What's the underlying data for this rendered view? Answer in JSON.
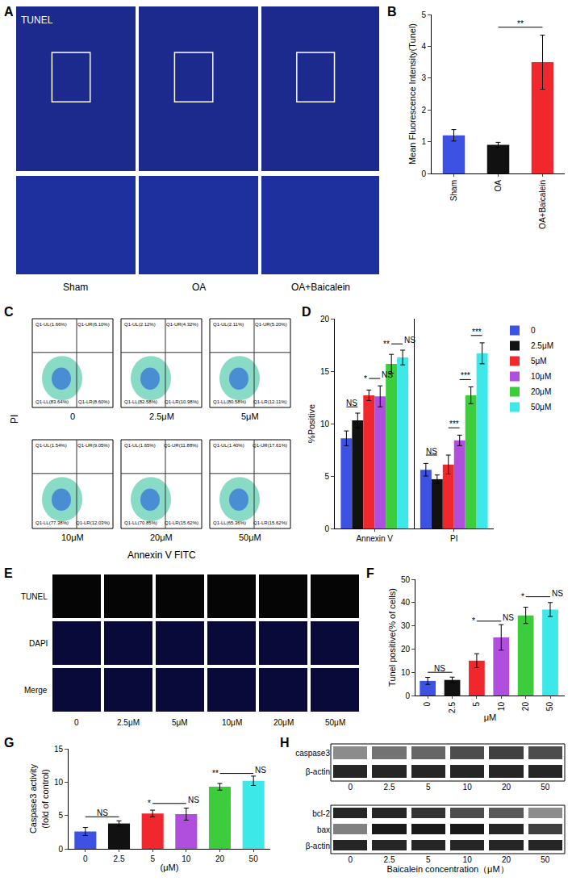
{
  "panels": {
    "A": {
      "panel": "A",
      "stain": "TUNEL",
      "groups": [
        "Sham",
        "OA",
        "OA+Baicalein"
      ]
    },
    "C": {
      "panel": "C",
      "x_label": "Annexin V FITC",
      "y_label": "PI",
      "tick_labels": false,
      "samples": [
        {
          "name": "0",
          "quadrants": [
            "Q1-UL(1.66%)",
            "Q1-UR(6.10%)",
            "Q1-LL(83.64%)",
            "Q1-LR(8.60%)"
          ]
        },
        {
          "name": "2.5μM",
          "quadrants": [
            "Q1-UL(2.12%)",
            "Q1-UR(4.32%)",
            "Q1-LL(82.58%)",
            "Q1-LR(10.98%)"
          ]
        },
        {
          "name": "5μM",
          "quadrants": [
            "Q1-UL(2.11%)",
            "Q1-UR(5.20%)",
            "Q1-LL(80.58%)",
            "Q1-LR(12.11%)"
          ]
        },
        {
          "name": "10μM",
          "quadrants": [
            "Q1-UL(1.54%)",
            "Q1-UR(9.05%)",
            "Q1-LL(77.38%)",
            "Q1-LR(12.03%)"
          ]
        },
        {
          "name": "20μM",
          "quadrants": [
            "Q1-UL(1.65%)",
            "Q1-UR(11.88%)",
            "Q1-LL(70.85%)",
            "Q1-LR(15.62%)"
          ]
        },
        {
          "name": "50μM",
          "quadrants": [
            "Q1-UL(1.40%)",
            "Q1-UR(17.61%)",
            "Q1-LL(65.36%)",
            "Q1-LR(15.62%)"
          ]
        }
      ]
    },
    "E": {
      "panel": "E",
      "rows": [
        "TUNEL",
        "DAPI",
        "Merge"
      ],
      "columns": [
        "0",
        "2.5μM",
        "5μM",
        "10μM",
        "20μM",
        "50μM"
      ]
    },
    "H": {
      "panel": "H",
      "x_label": "Baicalein concentration（μM）",
      "lanes": [
        "0",
        "2.5",
        "5",
        "10",
        "20",
        "50"
      ],
      "blots": [
        {
          "rows": [
            {
              "name": "caspase3",
              "band_intensity": [
                0.45,
                0.55,
                0.6,
                0.7,
                0.75,
                0.7
              ]
            },
            {
              "name": "β-actin",
              "band_intensity": [
                0.85,
                0.85,
                0.85,
                0.85,
                0.85,
                0.85
              ]
            }
          ]
        },
        {
          "rows": [
            {
              "name": "bcl-2",
              "band_intensity": [
                0.85,
                0.85,
                0.8,
                0.7,
                0.65,
                0.45
              ]
            },
            {
              "name": "bax",
              "band_intensity": [
                0.5,
                0.9,
                0.9,
                0.9,
                0.85,
                0.75
              ]
            },
            {
              "name": "β-actin",
              "band_intensity": [
                0.85,
                0.85,
                0.85,
                0.85,
                0.85,
                0.85
              ]
            }
          ]
        }
      ]
    }
  },
  "chart_data": [
    {
      "panel": "B",
      "type": "bar",
      "categories": [
        "Sham",
        "OA",
        "OA+Baicalein"
      ],
      "values": [
        1.2,
        0.9,
        3.5
      ],
      "errors": [
        0.18,
        0.08,
        0.85
      ],
      "colors": [
        "#3d52e3",
        "#111111",
        "#f0282d"
      ],
      "ylabel": "Mean Fluorescence Intensity(Tunel)",
      "ylim": [
        0,
        5
      ],
      "yticks": [
        0,
        1,
        2,
        3,
        4,
        5
      ],
      "grid": false,
      "significance": [
        {
          "texts": [
            "**"
          ],
          "from": 1,
          "to": 2,
          "y": 4.6
        }
      ]
    },
    {
      "panel": "D",
      "type": "bar",
      "categories": [
        "Annexin V",
        "PI"
      ],
      "series": [
        {
          "name": "0",
          "color": "#3d52e3",
          "values": [
            8.6,
            5.6
          ],
          "errors": [
            0.7,
            0.6
          ]
        },
        {
          "name": "2.5μM",
          "color": "#111111",
          "values": [
            10.3,
            4.7
          ],
          "errors": [
            0.7,
            0.4
          ]
        },
        {
          "name": "5μM",
          "color": "#f0282d",
          "values": [
            12.7,
            6.1
          ],
          "errors": [
            0.5,
            0.9
          ]
        },
        {
          "name": "10μM",
          "color": "#b04fdd",
          "values": [
            12.6,
            8.4
          ],
          "errors": [
            1.0,
            0.5
          ]
        },
        {
          "name": "20μM",
          "color": "#3ccc3c",
          "values": [
            15.7,
            12.7
          ],
          "errors": [
            0.9,
            0.8
          ]
        },
        {
          "name": "50μM",
          "color": "#3de8e8",
          "values": [
            16.3,
            16.7
          ],
          "errors": [
            0.7,
            1.0
          ]
        }
      ],
      "ylabel": "%Positive",
      "ylim": [
        0,
        20
      ],
      "yticks": [
        0,
        5,
        10,
        15,
        20
      ],
      "grid": false,
      "legend": "right",
      "significance": [
        {
          "category": 0,
          "texts": [
            "NS"
          ],
          "from": 0,
          "to": 1,
          "y": 11.6
        },
        {
          "category": 0,
          "texts": [
            "*",
            "NS"
          ],
          "from": 2,
          "to": 3,
          "y": 14.3
        },
        {
          "category": 0,
          "texts": [
            "**",
            "NS"
          ],
          "from": 4,
          "to": 5,
          "y": 17.6
        },
        {
          "category": 1,
          "texts": [
            "NS"
          ],
          "from": 0,
          "to": 1,
          "y": 7.0
        },
        {
          "category": 1,
          "texts": [
            "***"
          ],
          "from": 2,
          "to": 3,
          "y": 9.6
        },
        {
          "category": 1,
          "texts": [
            "***"
          ],
          "from": 3,
          "to": 4,
          "y": 14.2
        },
        {
          "category": 1,
          "texts": [
            "***"
          ],
          "from": 4,
          "to": 5,
          "y": 18.4
        }
      ]
    },
    {
      "panel": "F",
      "type": "bar",
      "categories": [
        "0",
        "2.5",
        "5",
        "10",
        "20",
        "50"
      ],
      "values": [
        6.3,
        6.7,
        15,
        25,
        34.5,
        37
      ],
      "errors": [
        1.5,
        1.2,
        3,
        5.5,
        3.5,
        3
      ],
      "colors": [
        "#3d52e3",
        "#111111",
        "#f0282d",
        "#b04fdd",
        "#3ccc3c",
        "#3de8e8"
      ],
      "xlabel": "μM",
      "ylabel": "Tunel positive(% of cells)",
      "ylim": [
        0,
        50
      ],
      "yticks": [
        0,
        10,
        20,
        30,
        40,
        50
      ],
      "grid": false,
      "significance": [
        {
          "texts": [
            "NS"
          ],
          "from": 0,
          "to": 1,
          "y": 10
        },
        {
          "texts": [
            "*",
            "NS"
          ],
          "from": 2,
          "to": 3,
          "y": 32
        },
        {
          "texts": [
            "*",
            "NS"
          ],
          "from": 4,
          "to": 5,
          "y": 42.5
        }
      ]
    },
    {
      "panel": "G",
      "type": "bar",
      "categories": [
        "0",
        "2.5",
        "5",
        "10",
        "20",
        "50"
      ],
      "values": [
        2.6,
        3.8,
        5.3,
        5.2,
        9.3,
        10.2
      ],
      "errors": [
        0.6,
        0.4,
        0.5,
        0.9,
        0.5,
        0.7
      ],
      "colors": [
        "#3d52e3",
        "#111111",
        "#f0282d",
        "#b04fdd",
        "#3ccc3c",
        "#3de8e8"
      ],
      "xlabel": "(μM)",
      "ylabel": [
        "Caspase3 activity",
        "(fold of control)"
      ],
      "ylim": [
        0,
        15
      ],
      "yticks": [
        0,
        5,
        10,
        15
      ],
      "grid": false,
      "significance": [
        {
          "texts": [
            "NS"
          ],
          "from": 0,
          "to": 1,
          "y": 4.8
        },
        {
          "texts": [
            "*",
            "NS"
          ],
          "from": 2,
          "to": 3,
          "y": 6.8
        },
        {
          "texts": [
            "**",
            "NS"
          ],
          "from": 4,
          "to": 5,
          "y": 11.3
        }
      ]
    }
  ]
}
